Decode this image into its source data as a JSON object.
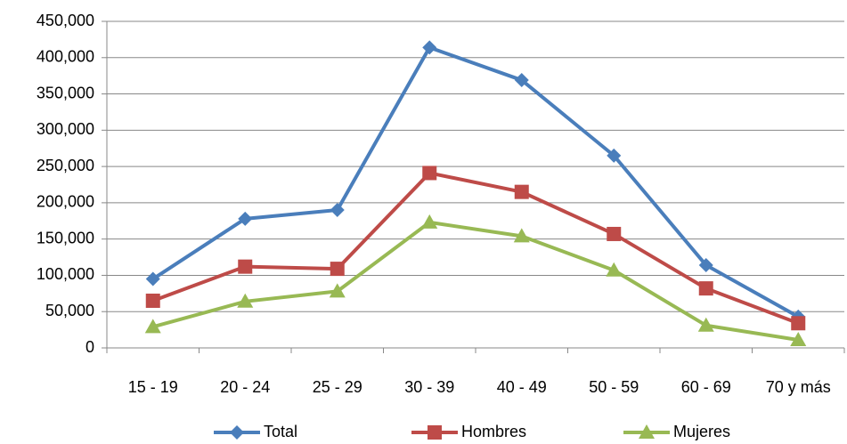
{
  "chart_data": {
    "type": "line",
    "categories": [
      "15 - 19",
      "20 - 24",
      "25 - 29",
      "30 - 39",
      "40 - 49",
      "50 - 59",
      "60 - 69",
      "70 y más"
    ],
    "series": [
      {
        "name": "Total",
        "color": "#4a7ebb",
        "marker": "diamond",
        "values": [
          95000,
          178000,
          190000,
          414000,
          369000,
          265000,
          114000,
          43000
        ]
      },
      {
        "name": "Hombres",
        "color": "#be4b48",
        "marker": "square",
        "values": [
          65000,
          112000,
          109000,
          241000,
          215000,
          157000,
          82000,
          34000
        ]
      },
      {
        "name": "Mujeres",
        "color": "#98b954",
        "marker": "triangle",
        "values": [
          29000,
          64000,
          78000,
          173000,
          154000,
          107000,
          31000,
          11000
        ]
      }
    ],
    "ylim": [
      0,
      450000
    ],
    "yticks": [
      0,
      {
        "value": 50000,
        "label": "50,000"
      },
      {
        "value": 100000,
        "label": "100,000"
      },
      {
        "value": 150000,
        "label": "150,000"
      },
      {
        "value": 200000,
        "label": "200,000"
      },
      {
        "value": 250000,
        "label": "250,000"
      },
      {
        "value": 300000,
        "label": "300,000"
      },
      {
        "value": 350000,
        "label": "350,000"
      },
      {
        "value": 400000,
        "label": "400,000"
      },
      {
        "value": 450000,
        "label": "450,000"
      }
    ],
    "grid": true,
    "legend": "bottom"
  }
}
